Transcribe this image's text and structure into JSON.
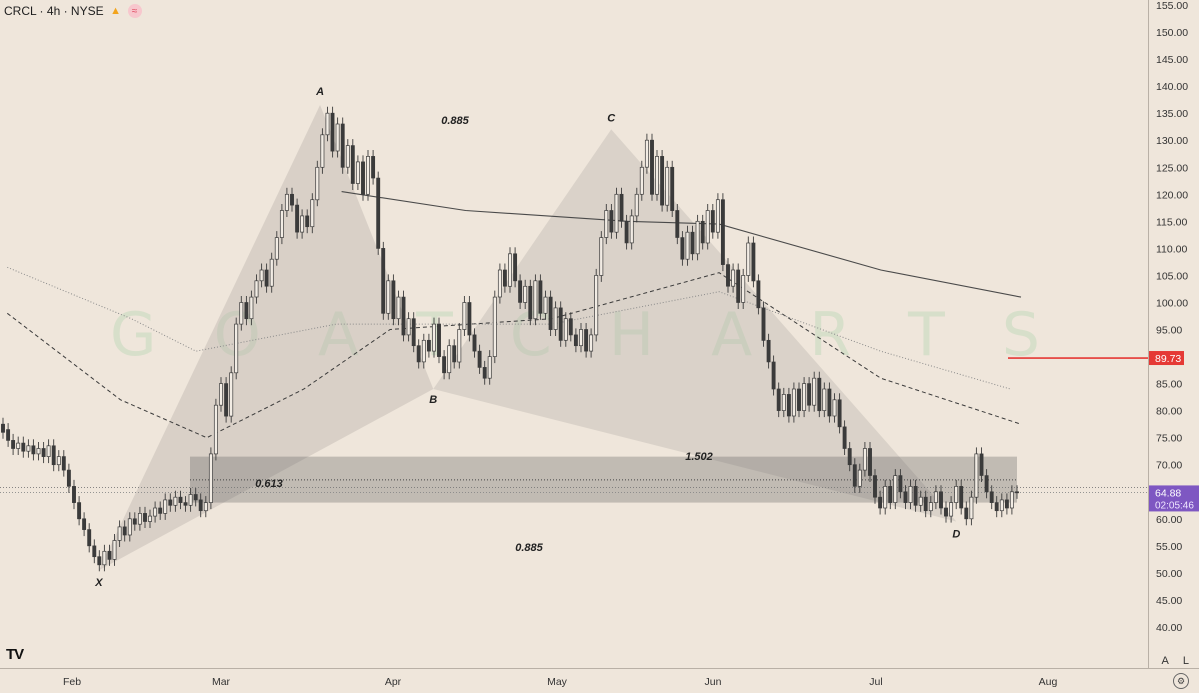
{
  "header": {
    "symbol": "CRCL · 4h · NYSE"
  },
  "watermark": "G O A T  C H A R T S",
  "price_axis": {
    "ticks": [
      "155.00",
      "150.00",
      "145.00",
      "140.00",
      "135.00",
      "130.00",
      "125.00",
      "120.00",
      "115.00",
      "110.00",
      "105.00",
      "100.00",
      "95.00",
      "90.00",
      "85.00",
      "80.00",
      "75.00",
      "70.00",
      "65.00",
      "60.00",
      "55.00",
      "50.00",
      "45.00",
      "40.00"
    ],
    "current_price": "64.88",
    "countdown": "02:05:46",
    "alert_price": "89.73"
  },
  "time_axis": {
    "labels": [
      "Feb",
      "Mar",
      "Apr",
      "May",
      "Jun",
      "Jul",
      "Aug"
    ]
  },
  "pattern": {
    "points": [
      "X",
      "A",
      "B",
      "C",
      "D"
    ],
    "ratios": [
      "0.885",
      "0.613",
      "0.885",
      "1.502"
    ]
  },
  "bottom_right": {
    "auto": "A",
    "log": "L"
  },
  "colors": {
    "background": "#efe6db",
    "alert_line": "#e53935",
    "price_badge": "#7e57c2",
    "zone": "#7f7f7f",
    "pattern_fill": "#b9b3ab"
  },
  "chart_data": {
    "type": "candlestick",
    "title": "",
    "xlabel": "",
    "ylabel": "",
    "ylim": [
      35,
      157
    ],
    "pivots": [
      {
        "label": "X",
        "date": "Feb 06",
        "price": 50.5
      },
      {
        "label": "A",
        "date": "Mar 19",
        "price": 136.5
      },
      {
        "label": "B",
        "date": "Apr 09",
        "price": 84.0
      },
      {
        "label": "C",
        "date": "May 12",
        "price": 132.0
      },
      {
        "label": "D",
        "date": "Jul 15",
        "price": 59.5
      }
    ],
    "zone": {
      "top": 71.5,
      "bottom": 63.0
    },
    "candles": [
      [
        77.5,
        76.0
      ],
      [
        76.5,
        74.5
      ],
      [
        74.5,
        73.0
      ],
      [
        73.0,
        74.0
      ],
      [
        74.0,
        72.5
      ],
      [
        72.5,
        73.5
      ],
      [
        73.5,
        72.0
      ],
      [
        72.0,
        73.0
      ],
      [
        73.0,
        71.5
      ],
      [
        71.5,
        73.5
      ],
      [
        73.5,
        70.0
      ],
      [
        70.0,
        71.5
      ],
      [
        71.5,
        69.0
      ],
      [
        69.0,
        66.0
      ],
      [
        66.0,
        63.0
      ],
      [
        63.0,
        60.0
      ],
      [
        60.0,
        58.0
      ],
      [
        58.0,
        55.0
      ],
      [
        55.0,
        53.0
      ],
      [
        53.0,
        51.5
      ],
      [
        51.5,
        54.0
      ],
      [
        54.0,
        52.5
      ],
      [
        52.5,
        56.0
      ],
      [
        56.0,
        58.5
      ],
      [
        58.5,
        57.0
      ],
      [
        57.0,
        60.0
      ],
      [
        60.0,
        59.0
      ],
      [
        59.0,
        61.0
      ],
      [
        61.0,
        59.5
      ],
      [
        59.5,
        60.5
      ],
      [
        60.5,
        62.0
      ],
      [
        62.0,
        61.0
      ],
      [
        61.0,
        63.5
      ],
      [
        63.5,
        62.5
      ],
      [
        62.5,
        64.0
      ],
      [
        64.0,
        63.0
      ],
      [
        63.0,
        62.5
      ],
      [
        62.5,
        64.5
      ],
      [
        64.5,
        63.5
      ],
      [
        63.5,
        61.5
      ],
      [
        61.5,
        63.0
      ],
      [
        63.0,
        72.0
      ],
      [
        72.0,
        81.0
      ],
      [
        81.0,
        85.0
      ],
      [
        85.0,
        79.0
      ],
      [
        79.0,
        87.0
      ],
      [
        87.0,
        96.0
      ],
      [
        96.0,
        100.0
      ],
      [
        100.0,
        97.0
      ],
      [
        97.0,
        101.0
      ],
      [
        101.0,
        104.0
      ],
      [
        104.0,
        106.0
      ],
      [
        106.0,
        103.0
      ],
      [
        103.0,
        108.0
      ],
      [
        108.0,
        112.0
      ],
      [
        112.0,
        117.0
      ],
      [
        117.0,
        120.0
      ],
      [
        120.0,
        118.0
      ],
      [
        118.0,
        113.0
      ],
      [
        113.0,
        116.0
      ],
      [
        116.0,
        114.0
      ],
      [
        114.0,
        119.0
      ],
      [
        119.0,
        125.0
      ],
      [
        125.0,
        131.0
      ],
      [
        131.0,
        135.0
      ],
      [
        135.0,
        128.0
      ],
      [
        128.0,
        133.0
      ],
      [
        133.0,
        125.0
      ],
      [
        125.0,
        129.0
      ],
      [
        129.0,
        122.0
      ],
      [
        122.0,
        126.0
      ],
      [
        126.0,
        120.0
      ],
      [
        120.0,
        127.0
      ],
      [
        127.0,
        123.0
      ],
      [
        123.0,
        110.0
      ],
      [
        110.0,
        98.0
      ],
      [
        98.0,
        104.0
      ],
      [
        104.0,
        97.0
      ],
      [
        97.0,
        101.0
      ],
      [
        101.0,
        94.0
      ],
      [
        94.0,
        97.0
      ],
      [
        97.0,
        92.0
      ],
      [
        92.0,
        89.0
      ],
      [
        89.0,
        93.0
      ],
      [
        93.0,
        91.0
      ],
      [
        91.0,
        96.0
      ],
      [
        96.0,
        90.0
      ],
      [
        90.0,
        87.0
      ],
      [
        87.0,
        92.0
      ],
      [
        92.0,
        89.0
      ],
      [
        89.0,
        95.0
      ],
      [
        95.0,
        100.0
      ],
      [
        100.0,
        94.0
      ],
      [
        94.0,
        91.0
      ],
      [
        91.0,
        88.0
      ],
      [
        88.0,
        86.0
      ],
      [
        86.0,
        90.0
      ],
      [
        90.0,
        101.0
      ],
      [
        101.0,
        106.0
      ],
      [
        106.0,
        103.0
      ],
      [
        103.0,
        109.0
      ],
      [
        109.0,
        104.0
      ],
      [
        104.0,
        100.0
      ],
      [
        100.0,
        103.0
      ],
      [
        103.0,
        97.0
      ],
      [
        97.0,
        104.0
      ],
      [
        104.0,
        98.0
      ],
      [
        98.0,
        101.0
      ],
      [
        101.0,
        95.0
      ],
      [
        95.0,
        99.0
      ],
      [
        99.0,
        93.0
      ],
      [
        93.0,
        97.0
      ],
      [
        97.0,
        94.0
      ],
      [
        94.0,
        92.0
      ],
      [
        92.0,
        95.0
      ],
      [
        95.0,
        91.0
      ],
      [
        91.0,
        94.0
      ],
      [
        94.0,
        105.0
      ],
      [
        105.0,
        112.0
      ],
      [
        112.0,
        117.0
      ],
      [
        117.0,
        113.0
      ],
      [
        113.0,
        120.0
      ],
      [
        120.0,
        115.0
      ],
      [
        115.0,
        111.0
      ],
      [
        111.0,
        116.0
      ],
      [
        116.0,
        120.0
      ],
      [
        120.0,
        125.0
      ],
      [
        125.0,
        130.0
      ],
      [
        130.0,
        120.0
      ],
      [
        120.0,
        127.0
      ],
      [
        127.0,
        118.0
      ],
      [
        118.0,
        125.0
      ],
      [
        125.0,
        117.0
      ],
      [
        117.0,
        112.0
      ],
      [
        112.0,
        108.0
      ],
      [
        108.0,
        113.0
      ],
      [
        113.0,
        109.0
      ],
      [
        109.0,
        115.0
      ],
      [
        115.0,
        111.0
      ],
      [
        111.0,
        117.0
      ],
      [
        117.0,
        113.0
      ],
      [
        113.0,
        119.0
      ],
      [
        119.0,
        107.0
      ],
      [
        107.0,
        103.0
      ],
      [
        103.0,
        106.0
      ],
      [
        106.0,
        100.0
      ],
      [
        100.0,
        105.0
      ],
      [
        105.0,
        111.0
      ],
      [
        111.0,
        104.0
      ],
      [
        104.0,
        99.0
      ],
      [
        99.0,
        93.0
      ],
      [
        93.0,
        89.0
      ],
      [
        89.0,
        84.0
      ],
      [
        84.0,
        80.0
      ],
      [
        80.0,
        83.0
      ],
      [
        83.0,
        79.0
      ],
      [
        79.0,
        84.0
      ],
      [
        84.0,
        80.0
      ],
      [
        80.0,
        85.0
      ],
      [
        85.0,
        81.0
      ],
      [
        81.0,
        86.0
      ],
      [
        86.0,
        80.0
      ],
      [
        80.0,
        84.0
      ],
      [
        84.0,
        79.0
      ],
      [
        79.0,
        82.0
      ],
      [
        82.0,
        77.0
      ],
      [
        77.0,
        73.0
      ],
      [
        73.0,
        70.0
      ],
      [
        70.0,
        66.0
      ],
      [
        66.0,
        69.0
      ],
      [
        69.0,
        73.0
      ],
      [
        73.0,
        68.0
      ],
      [
        68.0,
        64.0
      ],
      [
        64.0,
        62.0
      ],
      [
        62.0,
        66.0
      ],
      [
        66.0,
        63.0
      ],
      [
        63.0,
        68.0
      ],
      [
        68.0,
        65.0
      ],
      [
        65.0,
        63.0
      ],
      [
        63.0,
        66.0
      ],
      [
        66.0,
        62.5
      ],
      [
        62.5,
        64.0
      ],
      [
        64.0,
        61.5
      ],
      [
        61.5,
        63.0
      ],
      [
        63.0,
        65.0
      ],
      [
        65.0,
        62.0
      ],
      [
        62.0,
        60.5
      ],
      [
        60.5,
        63.0
      ],
      [
        63.0,
        66.0
      ],
      [
        66.0,
        62.0
      ],
      [
        62.0,
        60.0
      ],
      [
        60.0,
        64.0
      ],
      [
        64.0,
        72.0
      ],
      [
        72.0,
        68.0
      ],
      [
        68.0,
        65.0
      ],
      [
        65.0,
        63.0
      ],
      [
        63.0,
        61.5
      ],
      [
        61.5,
        63.5
      ],
      [
        63.5,
        62.0
      ],
      [
        62.0,
        65.0
      ],
      [
        65.0,
        64.88
      ]
    ],
    "moving_averages": [
      {
        "style": "solid",
        "points": [
          [
            "Mar 23",
            120.5
          ],
          [
            "Apr 15",
            117.0
          ],
          [
            "May 15",
            115.0
          ],
          [
            "Jun 01",
            114.5
          ],
          [
            "Jul 01",
            106.0
          ],
          [
            "Jul 27",
            101.0
          ]
        ]
      },
      {
        "style": "dashed",
        "points": [
          [
            "Jan 20",
            98.0
          ],
          [
            "Feb 10",
            82.0
          ],
          [
            "Feb 26",
            75.0
          ],
          [
            "Mar 16",
            84.0
          ],
          [
            "Apr 01",
            95.0
          ],
          [
            "May 01",
            97.0
          ],
          [
            "Jun 01",
            105.5
          ],
          [
            "Jul 01",
            86.0
          ],
          [
            "Jul 27",
            77.5
          ]
        ]
      },
      {
        "style": "dotted",
        "points": [
          [
            "Jan 20",
            106.5
          ],
          [
            "Feb 12",
            97.0
          ],
          [
            "Feb 24",
            91.0
          ],
          [
            "Mar 22",
            96.0
          ],
          [
            "May 01",
            96.0
          ],
          [
            "Jun 01",
            102.0
          ],
          [
            "Jul 01",
            91.0
          ],
          [
            "Jul 25",
            84.0
          ]
        ]
      }
    ]
  }
}
